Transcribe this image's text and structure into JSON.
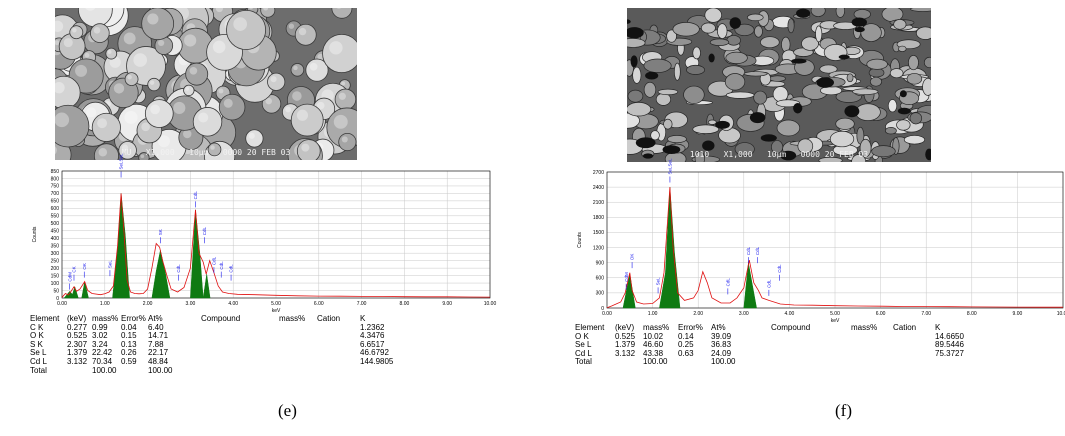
{
  "panels": [
    {
      "id": "e",
      "caption": "(e)",
      "sem_caption": "MU   X1,000   10µm   0000 20 FEB 03",
      "chart_data": {
        "type": "line",
        "xlabel": "keV",
        "ylabel": "Counts",
        "xlim": [
          0,
          10
        ],
        "ylim": [
          0,
          850
        ],
        "x_ticks": [
          "0.00",
          "1.00",
          "2.00",
          "3.00",
          "4.00",
          "5.00",
          "6.00",
          "7.00",
          "8.00",
          "9.00",
          "10.00"
        ],
        "y_ticks": [
          "0",
          "50",
          "100",
          "150",
          "200",
          "250",
          "300",
          "350",
          "400",
          "450",
          "500",
          "550",
          "600",
          "650",
          "700",
          "750",
          "800",
          "850"
        ],
        "spectrum": [
          [
            0.0,
            5
          ],
          [
            0.08,
            30
          ],
          [
            0.15,
            20
          ],
          [
            0.2,
            40
          ],
          [
            0.28,
            75
          ],
          [
            0.34,
            45
          ],
          [
            0.42,
            60
          ],
          [
            0.53,
            110
          ],
          [
            0.6,
            50
          ],
          [
            0.7,
            30
          ],
          [
            0.9,
            22
          ],
          [
            1.0,
            28
          ],
          [
            1.1,
            40
          ],
          [
            1.2,
            80
          ],
          [
            1.3,
            350
          ],
          [
            1.38,
            700
          ],
          [
            1.45,
            430
          ],
          [
            1.52,
            120
          ],
          [
            1.6,
            40
          ],
          [
            1.7,
            30
          ],
          [
            1.8,
            28
          ],
          [
            1.9,
            30
          ],
          [
            2.0,
            60
          ],
          [
            2.1,
            200
          ],
          [
            2.2,
            365
          ],
          [
            2.28,
            340
          ],
          [
            2.35,
            250
          ],
          [
            2.45,
            150
          ],
          [
            2.55,
            60
          ],
          [
            2.7,
            40
          ],
          [
            2.85,
            70
          ],
          [
            3.0,
            200
          ],
          [
            3.12,
            590
          ],
          [
            3.2,
            300
          ],
          [
            3.3,
            240
          ],
          [
            3.37,
            160
          ],
          [
            3.45,
            250
          ],
          [
            3.55,
            170
          ],
          [
            3.65,
            80
          ],
          [
            3.75,
            40
          ],
          [
            3.9,
            30
          ],
          [
            4.1,
            25
          ],
          [
            4.5,
            22
          ],
          [
            5.0,
            18
          ],
          [
            5.5,
            15
          ],
          [
            6.0,
            13
          ],
          [
            6.5,
            12
          ],
          [
            7.0,
            11
          ],
          [
            7.5,
            10
          ],
          [
            8.0,
            9
          ],
          [
            8.5,
            8
          ],
          [
            9.0,
            8
          ],
          [
            9.5,
            7
          ],
          [
            10.0,
            6
          ]
        ],
        "filled_peaks": [
          {
            "x": [
              0.05,
              0.18,
              0.32
            ],
            "y": [
              0,
              45,
              0
            ]
          },
          {
            "x": [
              0.22,
              0.3,
              0.38
            ],
            "y": [
              0,
              75,
              0
            ]
          },
          {
            "x": [
              0.46,
              0.53,
              0.62
            ],
            "y": [
              0,
              110,
              0
            ]
          },
          {
            "x": [
              1.18,
              1.3,
              1.38,
              1.48,
              1.58
            ],
            "y": [
              0,
              330,
              700,
              420,
              0
            ]
          },
          {
            "x": [
              2.1,
              2.2,
              2.3,
              2.42,
              2.52
            ],
            "y": [
              0,
              180,
              320,
              160,
              0
            ]
          },
          {
            "x": [
              3.0,
              3.12,
              3.22,
              3.3
            ],
            "y": [
              0,
              590,
              300,
              0
            ]
          },
          {
            "x": [
              3.3,
              3.38,
              3.46
            ],
            "y": [
              0,
              160,
              0
            ]
          }
        ],
        "peak_labels": [
          {
            "x": 0.18,
            "y": 110,
            "text": "CdM"
          },
          {
            "x": 0.28,
            "y": 170,
            "text": "CK"
          },
          {
            "x": 0.52,
            "y": 190,
            "text": "OK"
          },
          {
            "x": 1.12,
            "y": 200,
            "text": "SeL"
          },
          {
            "x": 1.38,
            "y": 860,
            "text": "SeLSeL"
          },
          {
            "x": 2.3,
            "y": 420,
            "text": "SK"
          },
          {
            "x": 2.72,
            "y": 170,
            "text": "CdL"
          },
          {
            "x": 3.12,
            "y": 660,
            "text": "CdL"
          },
          {
            "x": 3.33,
            "y": 420,
            "text": "CdL"
          },
          {
            "x": 3.55,
            "y": 220,
            "text": "CdL"
          },
          {
            "x": 3.72,
            "y": 190,
            "text": "CdL"
          },
          {
            "x": 3.95,
            "y": 170,
            "text": "CdL"
          }
        ]
      },
      "table": {
        "headers": [
          "Element",
          "(keV)",
          "mass%",
          "Error%",
          "At%",
          "Compound",
          "mass%",
          "Cation",
          "K"
        ],
        "rows": [
          [
            "C K",
            "0.277",
            "0.99",
            "0.04",
            "6.40",
            "",
            "",
            "",
            "1.2362"
          ],
          [
            "O K",
            "0.525",
            "3.02",
            "0.15",
            "14.71",
            "",
            "",
            "",
            "4.3476"
          ],
          [
            "S K",
            "2.307",
            "3.24",
            "0.13",
            "7.88",
            "",
            "",
            "",
            "6.6517"
          ],
          [
            "Se L",
            "1.379",
            "22.42",
            "0.26",
            "22.17",
            "",
            "",
            "",
            "46.6792"
          ],
          [
            "Cd L",
            "3.132",
            "70.34",
            "0.59",
            "48.84",
            "",
            "",
            "",
            "144.9805"
          ],
          [
            "Total",
            "",
            "100.00",
            "",
            "100.00",
            "",
            "",
            "",
            ""
          ]
        ]
      }
    },
    {
      "id": "f",
      "caption": "(f)",
      "sem_caption": "1010   X1,000   10µm   0000 20 FEB 03",
      "chart_data": {
        "type": "line",
        "xlabel": "keV",
        "ylabel": "Counts",
        "xlim": [
          0,
          10
        ],
        "ylim": [
          0,
          2700
        ],
        "x_ticks": [
          "0.00",
          "1.00",
          "2.00",
          "3.00",
          "4.00",
          "5.00",
          "6.00",
          "7.00",
          "8.00",
          "9.00",
          "10.00"
        ],
        "y_ticks": [
          "0",
          "300",
          "600",
          "900",
          "1200",
          "1500",
          "1800",
          "2100",
          "2400",
          "2700"
        ],
        "spectrum": [
          [
            0.0,
            5
          ],
          [
            0.1,
            40
          ],
          [
            0.2,
            80
          ],
          [
            0.3,
            120
          ],
          [
            0.4,
            300
          ],
          [
            0.5,
            700
          ],
          [
            0.55,
            350
          ],
          [
            0.65,
            120
          ],
          [
            0.8,
            80
          ],
          [
            1.0,
            90
          ],
          [
            1.15,
            200
          ],
          [
            1.25,
            700
          ],
          [
            1.38,
            2400
          ],
          [
            1.45,
            1200
          ],
          [
            1.55,
            300
          ],
          [
            1.7,
            150
          ],
          [
            1.9,
            200
          ],
          [
            2.0,
            350
          ],
          [
            2.1,
            720
          ],
          [
            2.2,
            500
          ],
          [
            2.3,
            200
          ],
          [
            2.5,
            100
          ],
          [
            2.7,
            100
          ],
          [
            2.85,
            200
          ],
          [
            3.0,
            400
          ],
          [
            3.12,
            950
          ],
          [
            3.22,
            500
          ],
          [
            3.32,
            350
          ],
          [
            3.4,
            200
          ],
          [
            3.55,
            150
          ],
          [
            3.8,
            80
          ],
          [
            4.1,
            60
          ],
          [
            4.5,
            55
          ],
          [
            5.0,
            45
          ],
          [
            5.5,
            40
          ],
          [
            6.0,
            35
          ],
          [
            6.5,
            30
          ],
          [
            7.0,
            28
          ],
          [
            7.5,
            25
          ],
          [
            8.0,
            22
          ],
          [
            8.5,
            20
          ],
          [
            9.0,
            18
          ],
          [
            9.5,
            16
          ],
          [
            10.0,
            15
          ]
        ],
        "filled_peaks": [
          {
            "x": [
              0.35,
              0.5,
              0.62
            ],
            "y": [
              0,
              680,
              0
            ]
          },
          {
            "x": [
              1.15,
              1.28,
              1.38,
              1.48,
              1.6
            ],
            "y": [
              0,
              700,
              2400,
              1100,
              0
            ]
          },
          {
            "x": [
              3.0,
              3.1,
              3.18,
              3.28
            ],
            "y": [
              0,
              900,
              500,
              0
            ]
          }
        ],
        "peak_labels": [
          {
            "x": 0.42,
            "y": 520,
            "text": "CdM"
          },
          {
            "x": 0.55,
            "y": 950,
            "text": "OK"
          },
          {
            "x": 1.12,
            "y": 450,
            "text": "SeL"
          },
          {
            "x": 1.38,
            "y": 2650,
            "text": "SeLSeL"
          },
          {
            "x": 2.65,
            "y": 430,
            "text": "CdL"
          },
          {
            "x": 3.1,
            "y": 1050,
            "text": "CdL"
          },
          {
            "x": 3.3,
            "y": 1050,
            "text": "CdL"
          },
          {
            "x": 3.55,
            "y": 400,
            "text": "CdL"
          },
          {
            "x": 3.78,
            "y": 700,
            "text": "CdL"
          }
        ]
      },
      "table": {
        "headers": [
          "Element",
          "(keV)",
          "mass%",
          "Error%",
          "At%",
          "Compound",
          "mass%",
          "Cation",
          "K"
        ],
        "rows": [
          [
            "O K",
            "0.525",
            "10.02",
            "0.14",
            "39.09",
            "",
            "",
            "",
            "14.6650"
          ],
          [
            "Se L",
            "1.379",
            "46.60",
            "0.25",
            "36.83",
            "",
            "",
            "",
            "89.5446"
          ],
          [
            "Cd L",
            "3.132",
            "43.38",
            "0.63",
            "24.09",
            "",
            "",
            "",
            "75.3727"
          ],
          [
            "Total",
            "",
            "100.00",
            "",
            "100.00",
            "",
            "",
            "",
            ""
          ]
        ]
      }
    }
  ],
  "colors": {
    "spectrum": "#e01010",
    "peak_fill": "#0f7a12",
    "label": "#1a1aee",
    "grid": "#c8c8c8",
    "axis": "#000000"
  }
}
